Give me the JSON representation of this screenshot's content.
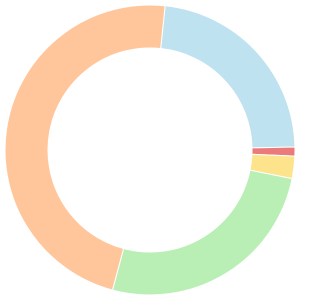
{
  "chart_data": {
    "type": "donut",
    "values": [
      23,
      1,
      2.5,
      26,
      47.5
    ],
    "colors": [
      "#bee2ef",
      "#eb7b7b",
      "#fde48c",
      "#b9efb5",
      "#ffc69c"
    ]
  }
}
